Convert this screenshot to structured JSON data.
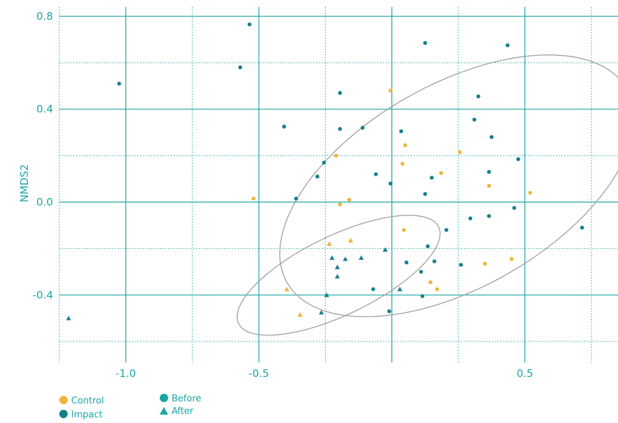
{
  "colors": {
    "teal": "#1AA5A5",
    "control": "#F0B43C",
    "impact": "#15808D",
    "ellipse": "#9E9E9E"
  },
  "legend": {
    "control_label": "Control",
    "impact_label": "Impact",
    "before_label": "Before",
    "after_label": "After"
  },
  "chart_data": {
    "type": "scatter",
    "xlabel": "",
    "ylabel": "NMDS2",
    "xlim": [
      -1.25,
      0.85
    ],
    "ylim": [
      -0.69,
      0.84
    ],
    "xticks": [
      -1.0,
      -0.5,
      0.5
    ],
    "xtick_labels": [
      "-1.0",
      "-0.5",
      "0.5"
    ],
    "yticks": [
      0.8,
      0.4,
      0.0,
      -0.4
    ],
    "ytick_labels": [
      "0.8",
      "0.4",
      "0.0",
      "-0.4"
    ],
    "x_major_grid": [
      -1.0,
      -0.5,
      0.0,
      0.5
    ],
    "x_minor_grid": [
      -1.25,
      -0.75,
      -0.25,
      0.25,
      0.75
    ],
    "y_major_grid": [
      0.8,
      0.4,
      0.0,
      -0.4
    ],
    "y_minor_grid": [
      0.6,
      0.2,
      -0.2,
      -0.6
    ],
    "grid": true,
    "legend_position": "bottom-left",
    "series": [
      {
        "group": "Control",
        "period": "Before",
        "marker": "circle",
        "points": [
          [
            -0.005,
            0.48
          ],
          [
            0.05,
            0.245
          ],
          [
            -0.21,
            0.2
          ],
          [
            0.04,
            0.165
          ],
          [
            0.185,
            0.125
          ],
          [
            0.255,
            0.215
          ],
          [
            0.365,
            0.07
          ],
          [
            -0.52,
            0.015
          ],
          [
            -0.16,
            0.01
          ],
          [
            -0.195,
            -0.01
          ],
          [
            0.045,
            -0.12
          ],
          [
            0.35,
            -0.265
          ],
          [
            0.45,
            -0.245
          ],
          [
            0.145,
            -0.345
          ],
          [
            0.17,
            -0.375
          ],
          [
            0.52,
            0.04
          ]
        ]
      },
      {
        "group": "Impact",
        "period": "Before",
        "marker": "circle",
        "points": [
          [
            -0.535,
            0.765
          ],
          [
            -0.57,
            0.58
          ],
          [
            -1.025,
            0.51
          ],
          [
            0.125,
            0.685
          ],
          [
            0.435,
            0.675
          ],
          [
            -0.195,
            0.315
          ],
          [
            -0.11,
            0.32
          ],
          [
            -0.405,
            0.325
          ],
          [
            -0.195,
            0.47
          ],
          [
            0.325,
            0.455
          ],
          [
            0.31,
            0.355
          ],
          [
            0.375,
            0.28
          ],
          [
            0.035,
            0.305
          ],
          [
            -0.255,
            0.17
          ],
          [
            0.475,
            0.185
          ],
          [
            -0.28,
            0.11
          ],
          [
            -0.06,
            0.12
          ],
          [
            0.365,
            0.13
          ],
          [
            0.15,
            0.105
          ],
          [
            -0.005,
            0.08
          ],
          [
            0.125,
            0.035
          ],
          [
            -0.36,
            0.015
          ],
          [
            0.295,
            -0.07
          ],
          [
            0.365,
            -0.06
          ],
          [
            0.46,
            -0.025
          ],
          [
            0.205,
            -0.12
          ],
          [
            0.715,
            -0.11
          ],
          [
            0.135,
            -0.19
          ],
          [
            0.055,
            -0.26
          ],
          [
            0.16,
            -0.255
          ],
          [
            0.26,
            -0.27
          ],
          [
            0.11,
            -0.3
          ],
          [
            -0.07,
            -0.375
          ],
          [
            0.115,
            -0.405
          ],
          [
            -0.01,
            -0.47
          ]
        ]
      },
      {
        "group": "Control",
        "period": "After",
        "marker": "triangle",
        "points": [
          [
            -0.155,
            -0.165
          ],
          [
            -0.235,
            -0.18
          ],
          [
            -0.395,
            -0.375
          ],
          [
            -0.345,
            -0.485
          ]
        ]
      },
      {
        "group": "Impact",
        "period": "After",
        "marker": "triangle",
        "points": [
          [
            -1.215,
            -0.5
          ],
          [
            -0.025,
            -0.205
          ],
          [
            -0.115,
            -0.24
          ],
          [
            -0.175,
            -0.245
          ],
          [
            -0.225,
            -0.24
          ],
          [
            -0.205,
            -0.28
          ],
          [
            -0.205,
            -0.32
          ],
          [
            -0.245,
            -0.4
          ],
          [
            -0.265,
            -0.475
          ],
          [
            0.03,
            -0.375
          ]
        ]
      }
    ],
    "ellipses": [
      {
        "label": "Before",
        "cx": 0.245,
        "cy": 0.07,
        "rx": 0.765,
        "ry": 0.42,
        "angle_deg": 36
      },
      {
        "label": "After",
        "cx": -0.2,
        "cy": -0.315,
        "rx": 0.43,
        "ry": 0.165,
        "angle_deg": 30
      }
    ]
  }
}
